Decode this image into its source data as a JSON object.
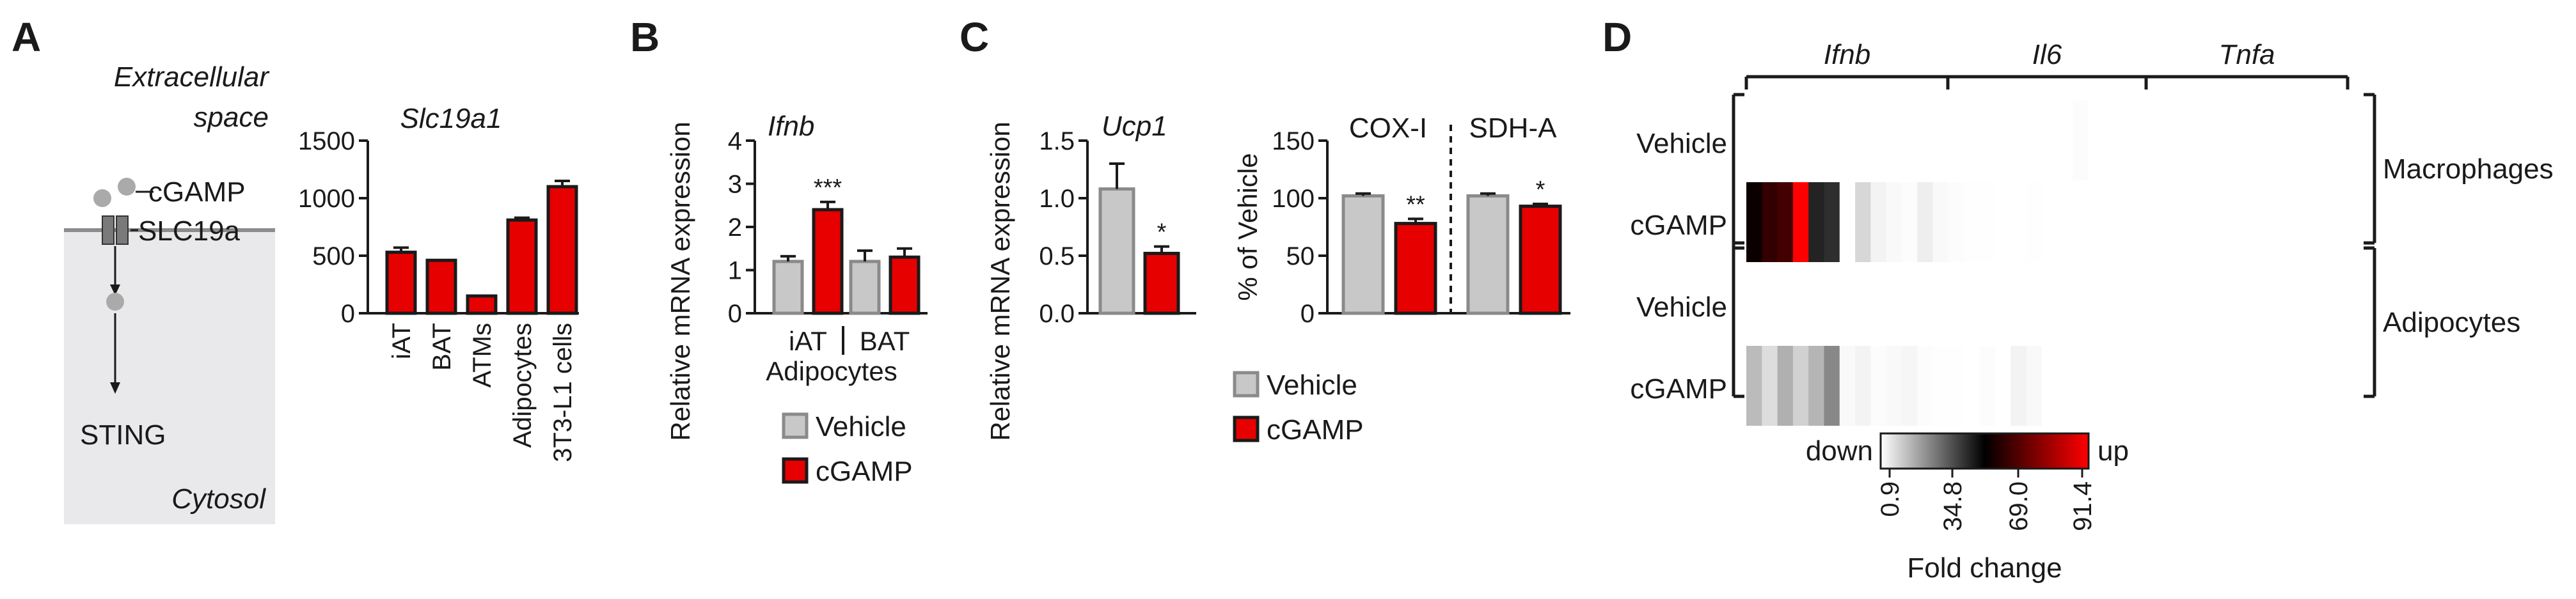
{
  "colors": {
    "red": "#e60000",
    "grey": "#c8c8c8",
    "grey_stroke": "#8a8a8a",
    "panel_bg": "#e9e8ea",
    "membrane": "#8c8c8c"
  },
  "panelA": {
    "letter": "A",
    "extracellular": [
      "Extracellular",
      "space"
    ],
    "cgamp": "cGAMP",
    "slc": "SLC19a",
    "sting": "STING",
    "cytosol": "Cytosol"
  },
  "panelB": {
    "letter": "B"
  },
  "panelC": {
    "letter": "C"
  },
  "panelD": {
    "letter": "D"
  },
  "legend": {
    "vehicle": "Vehicle",
    "cgamp": "cGAMP"
  },
  "chart_data": [
    {
      "id": "slc19a1",
      "type": "bar",
      "title": "Slc19a1",
      "categories": [
        "iAT",
        "BAT",
        "ATMs",
        "Adipocytes",
        "3T3-L1 cells"
      ],
      "values": [
        530,
        460,
        150,
        810,
        1100
      ],
      "errors": [
        40,
        0,
        0,
        20,
        50
      ],
      "ylim": [
        0,
        1500
      ],
      "yticks": [
        0,
        500,
        1000,
        1500
      ]
    },
    {
      "id": "ifnb",
      "type": "bar",
      "title": "Ifnb",
      "ylabel": "Relative mRNA expression",
      "categories": [
        "iAT",
        "BAT"
      ],
      "group_label": "Adipocytes",
      "series": [
        {
          "name": "Vehicle",
          "values": [
            1.2,
            1.2
          ],
          "errors": [
            0.12,
            0.25
          ]
        },
        {
          "name": "cGAMP",
          "values": [
            2.4,
            1.3
          ],
          "errors": [
            0.18,
            0.2
          ]
        }
      ],
      "significance": [
        "***",
        ""
      ],
      "ylim": [
        0,
        4
      ],
      "yticks": [
        0,
        1,
        2,
        3,
        4
      ]
    },
    {
      "id": "ucp1",
      "type": "bar",
      "title": "Ucp1",
      "ylabel": "Relative mRNA expression",
      "series": [
        {
          "name": "Vehicle",
          "values": [
            1.08
          ],
          "errors": [
            0.22
          ]
        },
        {
          "name": "cGAMP",
          "values": [
            0.52
          ],
          "errors": [
            0.06
          ]
        }
      ],
      "significance": [
        "*"
      ],
      "ylim": [
        0,
        1.5
      ],
      "yticks": [
        "0.0",
        "0.5",
        "1.0",
        "1.5"
      ]
    },
    {
      "id": "cox_sdh",
      "type": "bar",
      "ylabel": "% of Vehicle",
      "categories": [
        "COX-I",
        "SDH-A"
      ],
      "series": [
        {
          "name": "Vehicle",
          "values": [
            102,
            102
          ],
          "errors": [
            2,
            2
          ]
        },
        {
          "name": "cGAMP",
          "values": [
            78,
            93
          ],
          "errors": [
            4,
            2
          ]
        }
      ],
      "significance": [
        "**",
        "*"
      ],
      "ylim": [
        0,
        150
      ],
      "yticks": [
        0,
        50,
        100,
        150
      ]
    },
    {
      "id": "heatmap",
      "type": "heatmap",
      "columns_groups": [
        "Ifnb",
        "Il6",
        "Tnfa"
      ],
      "rows": [
        "Vehicle",
        "cGAMP",
        "Vehicle",
        "cGAMP"
      ],
      "row_groups": [
        "Macrophages",
        "Adipocytes"
      ],
      "colorbar": {
        "low": "down",
        "high": "up",
        "ticks": [
          "0.9",
          "34.8",
          "69.0",
          "91.4"
        ],
        "label": "Fold change"
      },
      "values": [
        [
          0.9,
          0.9,
          0.9,
          0.9,
          0.9,
          0.9,
          0.9,
          0.9,
          0.9,
          0.9,
          0.9,
          0.9,
          0.9,
          0.9,
          0.9,
          0.9,
          0.9,
          0.9,
          0.9,
          0.9,
          0.9,
          1.5,
          0.9
        ],
        [
          48,
          55,
          58,
          91.4,
          40,
          38,
          0.9,
          8,
          3,
          2,
          1.5,
          4,
          2,
          1.5,
          1,
          1,
          0.9,
          0.9,
          1,
          0.9,
          0.9,
          0.9,
          0.9
        ],
        [
          0.9,
          0.9,
          0.9,
          0.9,
          0.9,
          0.9,
          0.9,
          0.9,
          0.9,
          0.9,
          0.9,
          0.9,
          0.9,
          0.9,
          0.9,
          0.9,
          0.9,
          0.9,
          0.9,
          0.9,
          0.9,
          0.9,
          0.9
        ],
        [
          13,
          7,
          15,
          9,
          14,
          22,
          2,
          3,
          1.5,
          2,
          2.5,
          1.5,
          1,
          1,
          0.9,
          1.5,
          0.9,
          3,
          2,
          0.9,
          0.9,
          0.9,
          0.9
        ]
      ]
    }
  ]
}
